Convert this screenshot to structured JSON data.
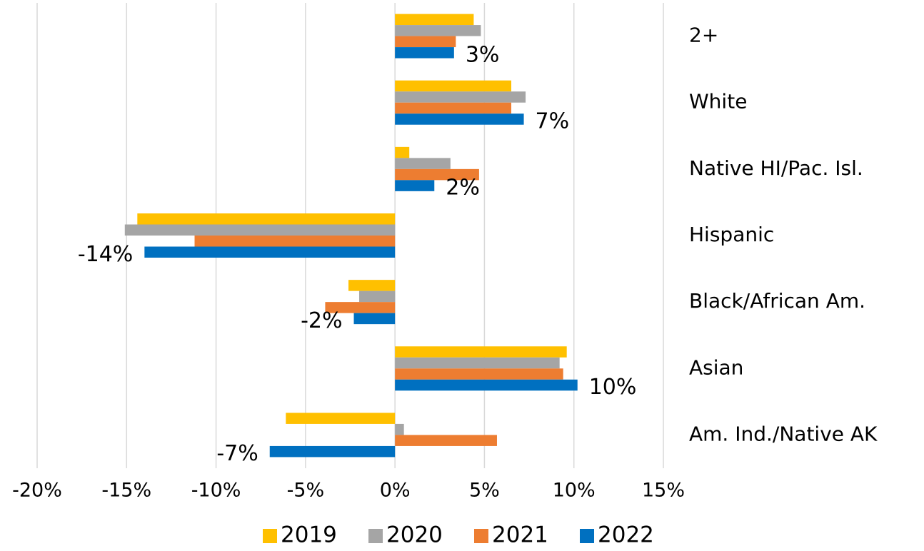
{
  "chart_data": {
    "type": "bar",
    "orientation": "horizontal",
    "categories": [
      "2+",
      "White",
      "Native HI/Pac. Isl.",
      "Hispanic",
      "Black/African Am.",
      "Asian",
      "Am. Ind./Native AK"
    ],
    "series": [
      {
        "name": "2019",
        "color": "#ffc000",
        "values": [
          4.4,
          6.5,
          0.8,
          -14.4,
          -2.6,
          9.6,
          -6.1
        ]
      },
      {
        "name": "2020",
        "color": "#a5a5a5",
        "values": [
          4.8,
          7.3,
          3.1,
          -15.1,
          -2.0,
          9.2,
          0.5
        ]
      },
      {
        "name": "2021",
        "color": "#ed7d31",
        "values": [
          3.4,
          6.5,
          4.7,
          -11.2,
          -3.9,
          9.4,
          5.7
        ]
      },
      {
        "name": "2022",
        "color": "#0070c0",
        "values": [
          3.3,
          7.2,
          2.2,
          -14.0,
          -2.3,
          10.2,
          -7.0
        ],
        "value_labels": [
          "3%",
          "7%",
          "2%",
          "-14%",
          "-2%",
          "10%",
          "-7%"
        ]
      }
    ],
    "xlim": [
      -20,
      15
    ],
    "xticks": [
      {
        "value": -20,
        "label": "-20%"
      },
      {
        "value": -15,
        "label": "-15%"
      },
      {
        "value": -10,
        "label": "-10%"
      },
      {
        "value": -5,
        "label": "-5%"
      },
      {
        "value": 0,
        "label": "0%"
      },
      {
        "value": 5,
        "label": "5%"
      },
      {
        "value": 10,
        "label": "10%"
      },
      {
        "value": 15,
        "label": "15%"
      }
    ],
    "grid": true,
    "legend": "bottom"
  }
}
